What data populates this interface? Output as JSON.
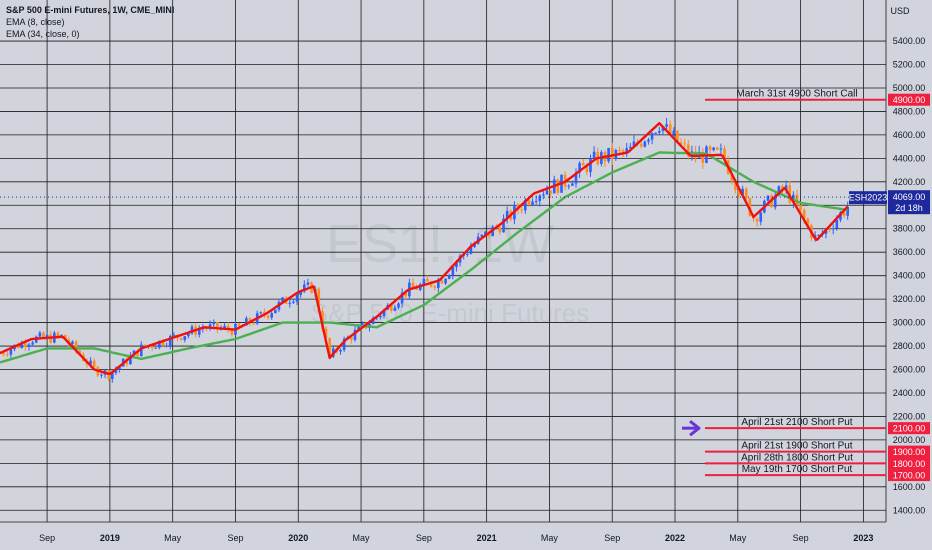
{
  "header": {
    "title": "S&P 500 E-mini Futures, 1W, CME_MINI",
    "indicators": [
      "EMA (8, close)",
      "EMA (34, close, 0)"
    ]
  },
  "watermark": {
    "symbol": "ES1!, 1W",
    "name": "S&P 500 E-mini Futures"
  },
  "colors": {
    "background": "#d1d4dc",
    "grid": "#1a1a1a",
    "up_candle": "#2962ff",
    "down_candle": "#ff8c1a",
    "ema8": "#ee1111",
    "ema34": "#4caf50",
    "annotation_line": "#ee1f3f",
    "arrow": "#6a35d6",
    "price_badge": "#1e2a9c"
  },
  "chart_data": {
    "type": "line",
    "title": "S&P 500 E-mini Futures, 1W, CME_MINI",
    "y_unit": "USD",
    "ylim": [
      1300,
      5750
    ],
    "yticks": [
      1400,
      1600,
      1800,
      2000,
      2200,
      2400,
      2600,
      2800,
      3000,
      3200,
      3400,
      3600,
      3800,
      4000,
      4200,
      4400,
      4600,
      4800,
      5000,
      5200,
      5400
    ],
    "x_ticks": [
      "Sep",
      "2019",
      "May",
      "Sep",
      "2020",
      "May",
      "Sep",
      "2021",
      "May",
      "Sep",
      "2022",
      "May",
      "Sep",
      "2023"
    ],
    "x_ticks_bold": [
      "2019",
      "2020",
      "2021",
      "2022",
      "2023"
    ],
    "grid": true,
    "series": [
      {
        "name": "EMA (8, close)",
        "x": [
          "2018-06",
          "2018-08",
          "2018-10",
          "2018-12",
          "2019-01",
          "2019-03",
          "2019-05",
          "2019-07",
          "2019-09",
          "2019-11",
          "2020-01",
          "2020-02",
          "2020-03",
          "2020-04",
          "2020-06",
          "2020-08",
          "2020-10",
          "2020-12",
          "2021-02",
          "2021-04",
          "2021-06",
          "2021-08",
          "2021-10",
          "2021-12",
          "2022-02",
          "2022-04",
          "2022-06",
          "2022-08",
          "2022-10",
          "2022-12"
        ],
        "values": [
          2740,
          2860,
          2880,
          2600,
          2560,
          2780,
          2870,
          2960,
          2940,
          3080,
          3260,
          3310,
          2700,
          2850,
          3050,
          3280,
          3360,
          3650,
          3850,
          4100,
          4200,
          4400,
          4450,
          4700,
          4420,
          4430,
          3900,
          4150,
          3700,
          3990
        ]
      },
      {
        "name": "EMA (34, close, 0)",
        "x": [
          "2018-06",
          "2018-09",
          "2018-12",
          "2019-03",
          "2019-06",
          "2019-09",
          "2019-12",
          "2020-03",
          "2020-06",
          "2020-09",
          "2020-12",
          "2021-03",
          "2021-06",
          "2021-09",
          "2021-12",
          "2022-03",
          "2022-06",
          "2022-09",
          "2022-12"
        ],
        "values": [
          2660,
          2780,
          2780,
          2690,
          2780,
          2860,
          3000,
          3000,
          2960,
          3150,
          3450,
          3770,
          4070,
          4280,
          4450,
          4440,
          4200,
          4020,
          3960
        ]
      }
    ],
    "annotations": [
      {
        "label": "March 31st 4900 Short Call",
        "price": "4900.00",
        "value": 4900
      },
      {
        "label": "April 21st 2100 Short Put",
        "price": "2100.00",
        "value": 2100
      },
      {
        "label": "April 21st 1900 Short Put",
        "price": "1900.00",
        "value": 1900
      },
      {
        "label": "April 28th 1800 Short Put",
        "price": "1800.00",
        "value": 1800
      },
      {
        "label": "May 19th 1700 Short Put",
        "price": "1700.00",
        "value": 1700
      }
    ],
    "last_price": {
      "symbol": "ESH2023",
      "value": 4069,
      "label": "4069.00",
      "countdown": "2d 18h"
    }
  }
}
